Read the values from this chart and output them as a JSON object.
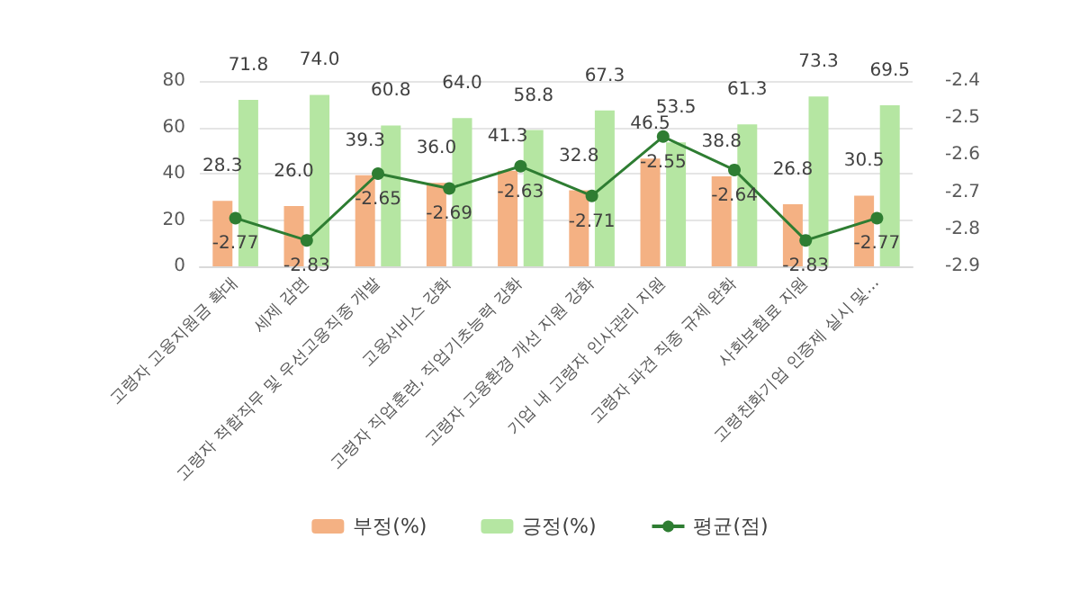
{
  "chart_data": {
    "type": "bar",
    "categories": [
      "고령자 고용지원금 확대",
      "세제 감면",
      "고령자 적합직무 및 우선고용직종 개발",
      "고용서비스 강화",
      "고령자 직업훈련, 직업기초능력 강화",
      "고령자 고용환경 개선 지원 강화",
      "기업 내 고령자 인사관리 지원",
      "고령자 파견 직종 규제 완화",
      "사회보험료 지원",
      "고령친화기업 인증제 실시 및..."
    ],
    "series": [
      {
        "name": "부정(%)",
        "color": "#f4b183",
        "values": [
          28.3,
          26.0,
          39.3,
          36.0,
          41.3,
          32.8,
          46.5,
          38.8,
          26.8,
          30.5
        ],
        "value_labels": [
          "28.3",
          "26.0",
          "39.3",
          "36.0",
          "41.3",
          "32.8",
          "46.5",
          "38.8",
          "26.8",
          "30.5"
        ]
      },
      {
        "name": "긍정(%)",
        "color": "#b5e6a2",
        "values": [
          71.8,
          74.0,
          60.8,
          64.0,
          58.8,
          67.3,
          53.5,
          61.3,
          73.3,
          69.5
        ],
        "value_labels": [
          "71.8",
          "74.0",
          "60.8",
          "64.0",
          "58.8",
          "67.3",
          "53.5",
          "61.3",
          "73.3",
          "69.5"
        ]
      },
      {
        "name": "평균(점)",
        "type": "line",
        "axis": "y2",
        "color": "#2e7d32",
        "values": [
          -2.77,
          -2.83,
          -2.65,
          -2.69,
          -2.63,
          -2.71,
          -2.55,
          -2.64,
          -2.83,
          -2.77
        ],
        "value_labels": [
          "-2.77",
          "-2.83",
          "-2.65",
          "-2.69",
          "-2.63",
          "-2.71",
          "-2.55",
          "-2.64",
          "-2.83",
          "-2.77"
        ]
      }
    ],
    "ylim": [
      0,
      80
    ],
    "yticks": [
      0,
      20,
      40,
      60,
      80
    ],
    "y2lim": [
      -2.9,
      -2.4
    ],
    "y2ticks": [
      -2.9,
      -2.8,
      -2.7,
      -2.6,
      -2.5,
      -2.4
    ],
    "grid": "y",
    "legend": "bottom",
    "marker": "circle",
    "line_style": "solid"
  }
}
